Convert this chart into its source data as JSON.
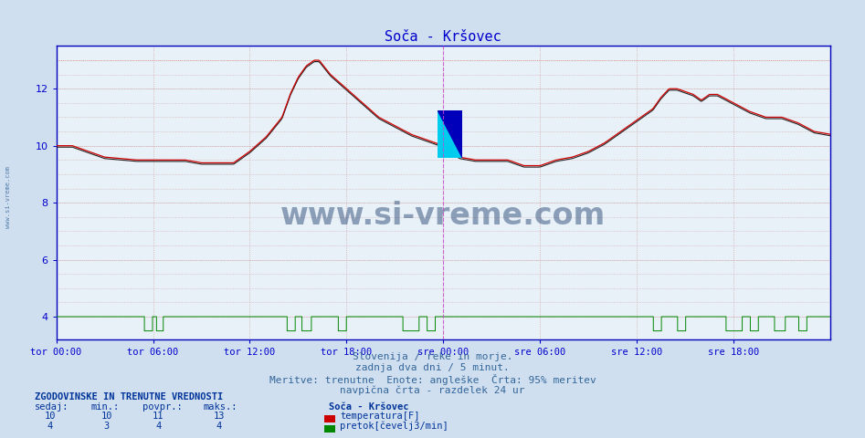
{
  "title": "Soča - Kršovec",
  "bg_color": "#d0dff0",
  "plot_bg_color": "#e8f0f8",
  "grid_color_major": "#b8cce0",
  "grid_color_dotted": "#cc9999",
  "title_color": "#0000cc",
  "tick_color": "#0000cc",
  "text_color": "#336699",
  "temp_color": "#cc0000",
  "black_line_color": "#222222",
  "flow_color": "#008800",
  "max_line_color": "#dd8888",
  "vline_color": "#cc44cc",
  "border_color": "#0000bb",
  "ylim_min": 3.2,
  "ylim_max": 13.5,
  "yticks": [
    4,
    6,
    8,
    10,
    12
  ],
  "xtick_labels": [
    "tor 00:00",
    "tor 06:00",
    "tor 12:00",
    "tor 18:00",
    "sre 00:00",
    "sre 06:00",
    "sre 12:00",
    "sre 18:00"
  ],
  "n_points": 576,
  "vline_pos": 0.5,
  "subtitle_lines": [
    "Slovenija / reke in morje.",
    "zadnja dva dni / 5 minut.",
    "Meritve: trenutne  Enote: angleške  Črta: 95% meritev",
    "navpična črta - razdelek 24 ur"
  ],
  "legend_title": "ZGODOVINSKE IN TRENUTNE VREDNOSTI",
  "legend_headers": [
    "sedaj:",
    "min.:",
    "povpr.:",
    "maks.:"
  ],
  "legend_temp_vals": [
    10,
    10,
    11,
    13
  ],
  "legend_temp_label": "temperatura[F]",
  "legend_flow_vals": [
    4,
    3,
    4,
    4
  ],
  "legend_flow_label": "pretok[čevelj3/min]",
  "legend_station": "Soča - Kršovec",
  "watermark": "www.si-vreme.com",
  "watermark_color": "#1a3a6a",
  "watermark_alpha": 0.45,
  "max_temp": 13.0,
  "figsize": [
    9.47,
    4.8
  ],
  "dpi": 100,
  "left_label": "www.si-vreme.com"
}
